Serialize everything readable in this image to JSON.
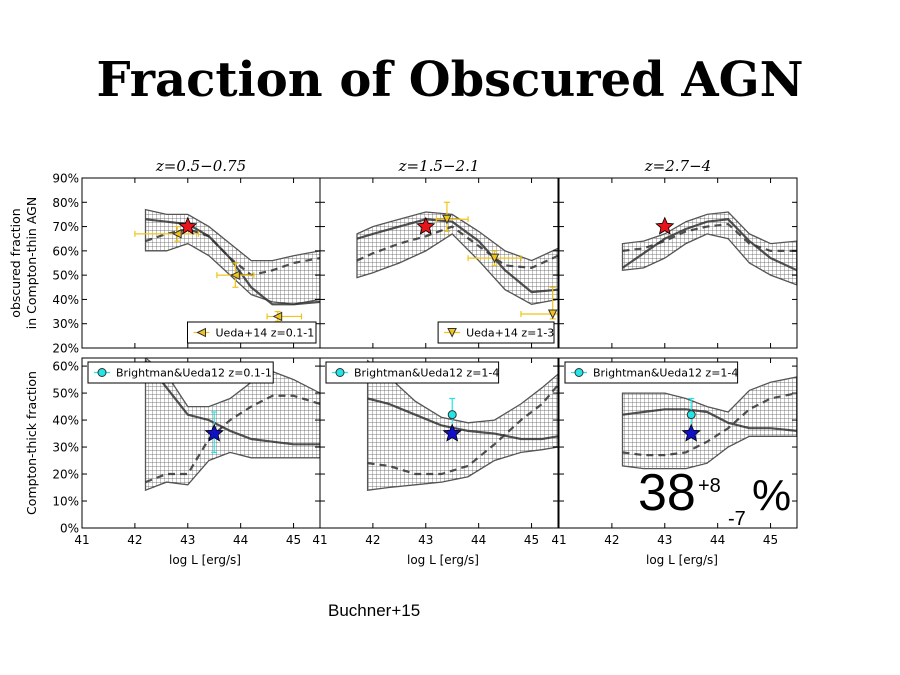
{
  "title": "Fraction of Obscured AGN",
  "credit": "Buchner+15",
  "colors": {
    "red_star": "#e8141a",
    "blue_star": "#1010c8",
    "yellow": "#f2c417",
    "cyan": "#22e6e6",
    "band": "#555555",
    "line": "#333333"
  },
  "chart_data": {
    "type": "line",
    "x_ticks": [
      41,
      42,
      43,
      44,
      45
    ],
    "xlabel": "log L [erg/s]",
    "xlim": [
      41,
      45.5
    ],
    "column_titles": [
      "z=0.5−0.75",
      "z=1.5−2.1",
      "z=2.7−4"
    ],
    "annotation": {
      "value": "38",
      "sup": "+8",
      "sub": "-7",
      "unit": "%"
    },
    "rows": [
      {
        "ylabel_lines": [
          "obscured fraction",
          "in Compton-thin AGN"
        ],
        "ylim": [
          20,
          90
        ],
        "y_ticks": [
          {
            "v": 20,
            "label": "20%"
          },
          {
            "v": 30,
            "label": "30%"
          },
          {
            "v": 40,
            "label": "40%"
          },
          {
            "v": 50,
            "label": "50%"
          },
          {
            "v": 60,
            "label": "60%"
          },
          {
            "v": 70,
            "label": "70%"
          },
          {
            "v": 80,
            "label": "80%"
          },
          {
            "v": 90,
            "label": "90%"
          }
        ],
        "panels": [
          {
            "solid": {
              "x": [
                42.2,
                42.6,
                43.0,
                43.4,
                43.8,
                44.2,
                44.6,
                45.0,
                45.5
              ],
              "y": [
                73,
                72,
                71,
                66,
                57,
                45,
                38,
                38,
                39
              ]
            },
            "band_top": {
              "x": [
                42.2,
                42.6,
                43.0,
                43.4,
                43.8,
                44.2,
                44.6,
                45.0,
                45.5
              ],
              "y": [
                77,
                75,
                75,
                70,
                63,
                56,
                56,
                58,
                60
              ]
            },
            "band_bottom": {
              "x": [
                42.2,
                42.6,
                43.0,
                43.4,
                43.8,
                44.2,
                44.6,
                45.0,
                45.5
              ],
              "y": [
                60,
                60,
                63,
                58,
                50,
                42,
                39,
                38,
                40
              ]
            },
            "dashed": {
              "x": [
                42.2,
                42.6,
                43.0,
                43.4,
                43.8,
                44.2,
                44.6,
                45.0,
                45.5
              ],
              "y": [
                64,
                67,
                69,
                66,
                57,
                50,
                52,
                55,
                57
              ]
            },
            "star": {
              "x": 43.0,
              "y": 70
            },
            "points": [
              {
                "x": 42.8,
                "y": 67,
                "xerr": [
                  0.8,
                  0.4
                ],
                "yerr": [
                  3,
                  3
                ]
              },
              {
                "x": 43.9,
                "y": 50,
                "xerr": [
                  0.35,
                  0.35
                ],
                "yerr": [
                  5,
                  5
                ]
              },
              {
                "x": 44.7,
                "y": 33,
                "xerr": [
                  0.2,
                  0.45
                ],
                "yerr": [
                  2,
                  2
                ]
              }
            ],
            "legend": {
              "label": "Ueda+14 z=0.1-1",
              "marker": "tri-left"
            }
          },
          {
            "solid": {
              "x": [
                41.7,
                42.0,
                42.5,
                43.0,
                43.5,
                44.0,
                44.5,
                45.0,
                45.5
              ],
              "y": [
                65,
                67,
                70,
                73,
                72,
                64,
                52,
                43,
                44
              ]
            },
            "band_top": {
              "x": [
                41.7,
                42.0,
                42.5,
                43.0,
                43.5,
                44.0,
                44.5,
                45.0,
                45.5
              ],
              "y": [
                67,
                70,
                73,
                76,
                75,
                68,
                60,
                56,
                61
              ]
            },
            "band_bottom": {
              "x": [
                41.7,
                42.0,
                42.5,
                43.0,
                43.5,
                44.0,
                44.5,
                45.0,
                45.5
              ],
              "y": [
                49,
                51,
                55,
                60,
                67,
                56,
                44,
                38,
                40
              ]
            },
            "dashed": {
              "x": [
                41.7,
                42.0,
                42.5,
                43.0,
                43.5,
                44.0,
                44.5,
                45.0,
                45.5
              ],
              "y": [
                56,
                59,
                63,
                66,
                70,
                62,
                54,
                53,
                58
              ]
            },
            "star": {
              "x": 43.0,
              "y": 70
            },
            "points": [
              {
                "x": 43.4,
                "y": 73,
                "xerr": [
                  0.2,
                  0.4
                ],
                "yerr": [
                  5,
                  7
                ]
              },
              {
                "x": 44.3,
                "y": 57,
                "xerr": [
                  0.5,
                  0.5
                ],
                "yerr": [
                  3,
                  3
                ]
              },
              {
                "x": 45.4,
                "y": 34,
                "xerr": [
                  0.6,
                  0.1
                ],
                "yerr": [
                  2,
                  11
                ]
              }
            ],
            "legend": {
              "label": "Ueda+14 z=1-3",
              "marker": "tri-down"
            }
          },
          {
            "solid": {
              "x": [
                42.2,
                42.6,
                43.0,
                43.4,
                43.8,
                44.2,
                44.6,
                45.0,
                45.5
              ],
              "y": [
                53,
                59,
                65,
                69,
                72,
                73,
                64,
                57,
                52
              ]
            },
            "band_top": {
              "x": [
                42.2,
                42.6,
                43.0,
                43.4,
                43.8,
                44.2,
                44.6,
                45.0,
                45.5
              ],
              "y": [
                63,
                64,
                67,
                72,
                75,
                76,
                67,
                63,
                64
              ]
            },
            "band_bottom": {
              "x": [
                42.2,
                42.6,
                43.0,
                43.4,
                43.8,
                44.2,
                44.6,
                45.0,
                45.5
              ],
              "y": [
                52,
                53,
                57,
                63,
                67,
                65,
                55,
                50,
                46
              ]
            },
            "dashed": {
              "x": [
                42.2,
                42.6,
                43.0,
                43.4,
                43.8,
                44.2,
                44.6,
                45.0,
                45.5
              ],
              "y": [
                60,
                61,
                64,
                68,
                70,
                71,
                63,
                60,
                60
              ]
            },
            "star": {
              "x": 43.0,
              "y": 70
            },
            "points": [],
            "legend": null
          }
        ]
      },
      {
        "ylabel_lines": [
          "Compton-thick fraction"
        ],
        "ylim": [
          0,
          63
        ],
        "y_ticks": [
          {
            "v": 0,
            "label": "0%"
          },
          {
            "v": 10,
            "label": "10%"
          },
          {
            "v": 20,
            "label": "20%"
          },
          {
            "v": 30,
            "label": "30%"
          },
          {
            "v": 40,
            "label": "40%"
          },
          {
            "v": 50,
            "label": "50%"
          },
          {
            "v": 60,
            "label": "60%"
          }
        ],
        "panels": [
          {
            "solid": {
              "x": [
                42.2,
                42.6,
                43.0,
                43.4,
                43.8,
                44.2,
                44.6,
                45.0,
                45.5
              ],
              "y": [
                62,
                52,
                42,
                40,
                36,
                33,
                32,
                31,
                31
              ]
            },
            "band_top": {
              "x": [
                42.2,
                42.6,
                43.0,
                43.4,
                43.8,
                44.2,
                44.6,
                45.0,
                45.5
              ],
              "y": [
                63,
                57,
                45,
                45,
                48,
                54,
                58,
                55,
                50
              ]
            },
            "band_bottom": {
              "x": [
                42.2,
                42.6,
                43.0,
                43.4,
                43.8,
                44.2,
                44.6,
                45.0,
                45.5
              ],
              "y": [
                14,
                17,
                16,
                25,
                28,
                26,
                26,
                26,
                26
              ]
            },
            "dashed": {
              "x": [
                42.2,
                42.6,
                43.0,
                43.4,
                43.8,
                44.2,
                44.6,
                45.0,
                45.5
              ],
              "y": [
                17,
                20,
                20,
                33,
                40,
                45,
                49,
                49,
                46
              ]
            },
            "star": {
              "x": 43.5,
              "y": 35
            },
            "points": [
              {
                "x": 43.5,
                "y": 35,
                "xerr": [
                  0,
                  0
                ],
                "yerr": [
                  7,
                  8
                ]
              }
            ],
            "legend": {
              "label": "Brightman&Ueda12 z=0.1-1",
              "marker": "circle"
            }
          },
          {
            "solid": {
              "x": [
                41.9,
                42.3,
                42.8,
                43.3,
                43.8,
                44.3,
                44.8,
                45.2,
                45.5
              ],
              "y": [
                48,
                46,
                42,
                38,
                36,
                35,
                33,
                33,
                34
              ]
            },
            "band_top": {
              "x": [
                41.9,
                42.3,
                42.8,
                43.3,
                43.8,
                44.3,
                44.8,
                45.2,
                45.5
              ],
              "y": [
                62,
                56,
                47,
                41,
                39,
                40,
                46,
                52,
                57
              ]
            },
            "band_bottom": {
              "x": [
                41.9,
                42.3,
                42.8,
                43.3,
                43.8,
                44.3,
                44.8,
                45.2,
                45.5
              ],
              "y": [
                14,
                15,
                16,
                17,
                19,
                25,
                28,
                29,
                30
              ]
            },
            "dashed": {
              "x": [
                41.9,
                42.3,
                42.8,
                43.3,
                43.8,
                44.3,
                44.8,
                45.2,
                45.5
              ],
              "y": [
                24,
                23,
                20,
                20,
                23,
                31,
                40,
                46,
                53
              ]
            },
            "star": {
              "x": 43.5,
              "y": 35
            },
            "points": [
              {
                "x": 43.5,
                "y": 42,
                "xerr": [
                  0,
                  0
                ],
                "yerr": [
                  7,
                  6
                ]
              }
            ],
            "legend": {
              "label": "Brightman&Ueda12 z=1-4",
              "marker": "circle"
            }
          },
          {
            "solid": {
              "x": [
                42.2,
                42.6,
                43.0,
                43.4,
                43.8,
                44.2,
                44.6,
                45.0,
                45.5
              ],
              "y": [
                42,
                43,
                44,
                44,
                43,
                39,
                37,
                37,
                36
              ]
            },
            "band_top": {
              "x": [
                42.2,
                42.6,
                43.0,
                43.4,
                43.8,
                44.2,
                44.6,
                45.0,
                45.5
              ],
              "y": [
                50,
                50,
                50,
                48,
                45,
                43,
                51,
                54,
                56
              ]
            },
            "band_bottom": {
              "x": [
                42.2,
                42.6,
                43.0,
                43.4,
                43.8,
                44.2,
                44.6,
                45.0,
                45.5
              ],
              "y": [
                23,
                22,
                22,
                22,
                24,
                30,
                34,
                34,
                34
              ]
            },
            "dashed": {
              "x": [
                42.2,
                42.6,
                43.0,
                43.4,
                43.8,
                44.2,
                44.6,
                45.0,
                45.5
              ],
              "y": [
                28,
                27,
                27,
                28,
                32,
                37,
                44,
                48,
                50
              ]
            },
            "star": {
              "x": 43.5,
              "y": 35
            },
            "points": [
              {
                "x": 43.5,
                "y": 42,
                "xerr": [
                  0,
                  0
                ],
                "yerr": [
                  7,
                  6
                ]
              }
            ],
            "legend": {
              "label": "Brightman&Ueda12 z=1-4",
              "marker": "circle"
            }
          }
        ]
      }
    ]
  }
}
